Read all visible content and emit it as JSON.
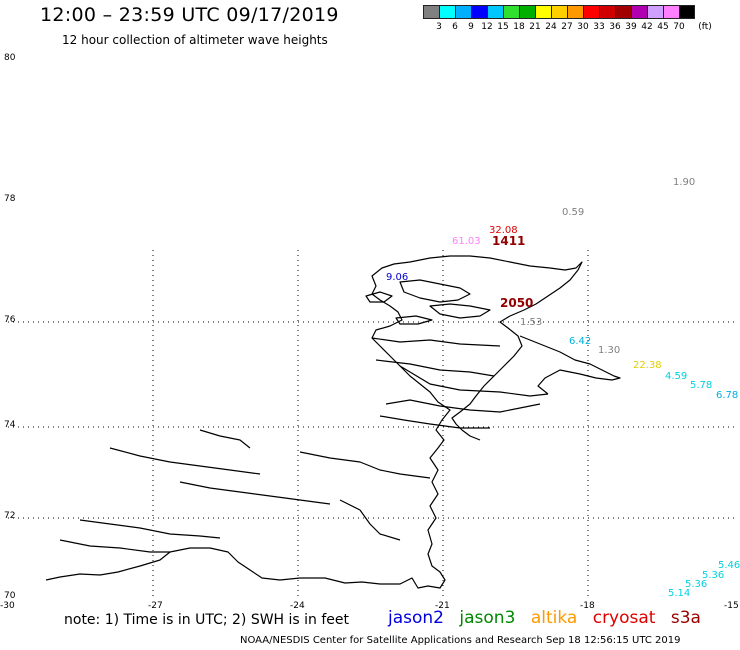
{
  "header": {
    "title": "12:00 – 23:59 UTC 09/17/2019",
    "subtitle": "12 hour collection of altimeter wave heights"
  },
  "colorbar": {
    "colors": [
      "#808080",
      "#00ffff",
      "#00b0ff",
      "#0000ff",
      "#00c8ff",
      "#30e030",
      "#00b000",
      "#ffff00",
      "#ffd000",
      "#ff9900",
      "#ff0000",
      "#d00000",
      "#a00000",
      "#b000b0",
      "#d0a0ff",
      "#ff80ff",
      "#000000"
    ],
    "labels": [
      "3",
      "6",
      "9",
      "12",
      "15",
      "18",
      "21",
      "24",
      "27",
      "30",
      "33",
      "36",
      "39",
      "42",
      "45",
      "70"
    ],
    "unit": "(ft)"
  },
  "axes": {
    "lat_labels": [
      "80",
      "78",
      "76",
      "74",
      "72",
      "70"
    ],
    "lon_labels": [
      "-30",
      "-27",
      "-24",
      "-21",
      "-18",
      "-15"
    ]
  },
  "observations": [
    {
      "text": "1.90",
      "color": "#808080"
    },
    {
      "text": "0.59",
      "color": "#808080"
    },
    {
      "text": "32.08",
      "color": "#e00000"
    },
    {
      "text": "61.03",
      "color": "#ff80ff"
    },
    {
      "text": "1411",
      "color": "#900000"
    },
    {
      "text": "9.06",
      "color": "#0000cc"
    },
    {
      "text": "2050",
      "color": "#900000"
    },
    {
      "text": "1.53",
      "color": "#808080"
    },
    {
      "text": "6.42",
      "color": "#00b0e0"
    },
    {
      "text": "1.30",
      "color": "#808080"
    },
    {
      "text": "22.38",
      "color": "#e0d000"
    },
    {
      "text": "4.59",
      "color": "#00d0e0"
    },
    {
      "text": "5.78",
      "color": "#00d0e0"
    },
    {
      "text": "6.78",
      "color": "#00b0e0"
    },
    {
      "text": "5.46",
      "color": "#00d0e0"
    },
    {
      "text": "5.36",
      "color": "#00d0e0"
    },
    {
      "text": "5.36",
      "color": "#00d0e0"
    },
    {
      "text": "5.14",
      "color": "#00d0e0"
    }
  ],
  "note": "note: 1) Time is in UTC; 2) SWH is in feet",
  "legend": [
    {
      "label": "jason2",
      "color": "#0000dd"
    },
    {
      "label": "jason3",
      "color": "#008800"
    },
    {
      "label": "altika",
      "color": "#ff9900"
    },
    {
      "label": "cryosat",
      "color": "#dd0000"
    },
    {
      "label": "s3a",
      "color": "#990000"
    }
  ],
  "footer": "NOAA/NESDIS Center for Satellite Applications and Research    Sep 18 12:56:15 UTC 2019"
}
